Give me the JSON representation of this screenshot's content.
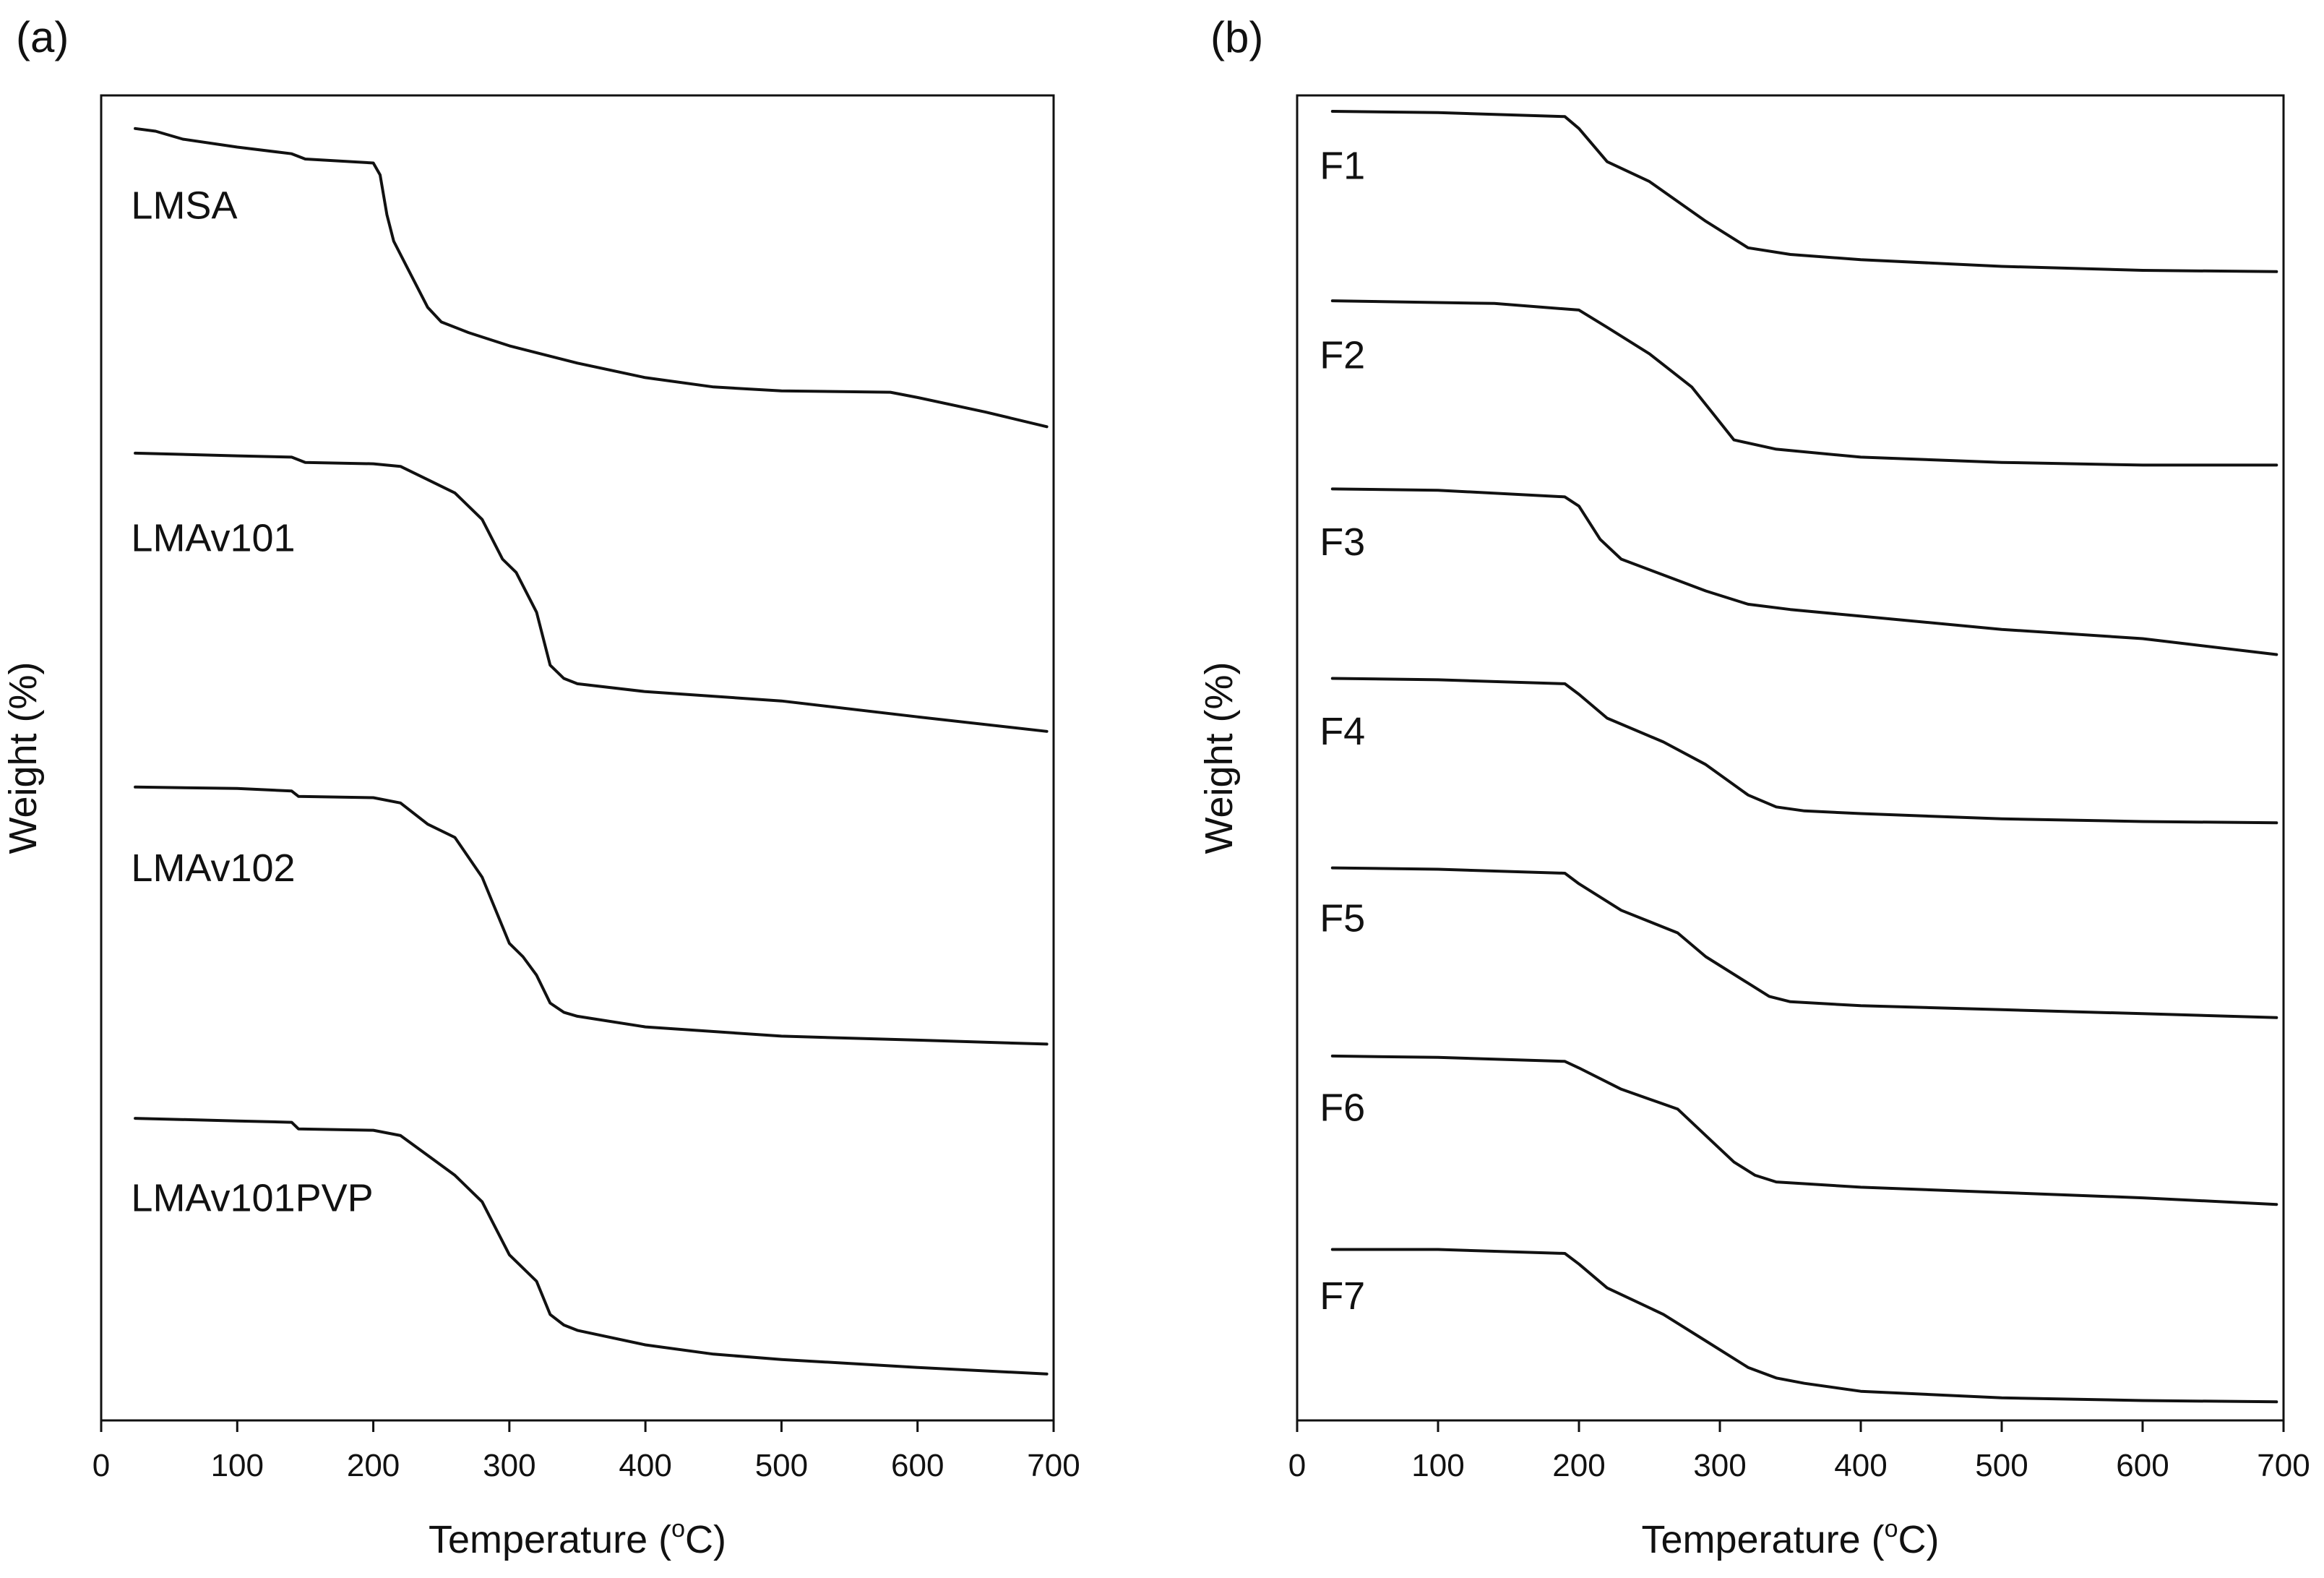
{
  "chart_data": [
    {
      "type": "line",
      "panel_label": "(a)",
      "xlabel": "Temperature (",
      "xlabel_sup": "o",
      "xlabel_end": "C)",
      "ylabel": "Weight (%)",
      "xlim": [
        0,
        700
      ],
      "xticks": [
        0,
        100,
        200,
        300,
        400,
        500,
        600,
        700
      ],
      "ylim": [
        0,
        1
      ],
      "yticks_shown": false,
      "grid": false,
      "note": "Curves are vertically offset (stacked); y values are normalized relative positions (1 = top of axis, 0 = bottom).",
      "series": [
        {
          "name": "LMSA",
          "x": [
            25,
            40,
            60,
            100,
            140,
            150,
            200,
            205,
            210,
            215,
            225,
            240,
            250,
            270,
            300,
            350,
            400,
            450,
            500,
            580,
            600,
            650,
            695
          ],
          "y": [
            0.975,
            0.973,
            0.967,
            0.961,
            0.956,
            0.952,
            0.949,
            0.94,
            0.91,
            0.89,
            0.87,
            0.84,
            0.829,
            0.821,
            0.811,
            0.798,
            0.787,
            0.78,
            0.777,
            0.776,
            0.772,
            0.761,
            0.75
          ]
        },
        {
          "name": "LMAv101",
          "x": [
            25,
            100,
            140,
            150,
            200,
            220,
            240,
            260,
            280,
            295,
            305,
            320,
            330,
            340,
            350,
            400,
            500,
            600,
            695
          ],
          "y": [
            0.73,
            0.728,
            0.727,
            0.723,
            0.722,
            0.72,
            0.71,
            0.7,
            0.68,
            0.65,
            0.64,
            0.61,
            0.57,
            0.56,
            0.556,
            0.55,
            0.543,
            0.531,
            0.52
          ]
        },
        {
          "name": "LMAv102",
          "x": [
            25,
            100,
            140,
            145,
            200,
            220,
            240,
            260,
            280,
            300,
            310,
            320,
            330,
            340,
            350,
            400,
            500,
            600,
            695
          ],
          "y": [
            0.478,
            0.477,
            0.475,
            0.471,
            0.47,
            0.466,
            0.45,
            0.44,
            0.41,
            0.36,
            0.35,
            0.336,
            0.315,
            0.308,
            0.305,
            0.297,
            0.29,
            0.287,
            0.284
          ]
        },
        {
          "name": "LMAv101PVP",
          "x": [
            25,
            100,
            140,
            145,
            200,
            220,
            240,
            260,
            280,
            300,
            320,
            330,
            340,
            350,
            400,
            450,
            500,
            600,
            695
          ],
          "y": [
            0.228,
            0.226,
            0.225,
            0.22,
            0.219,
            0.215,
            0.2,
            0.185,
            0.165,
            0.125,
            0.105,
            0.08,
            0.072,
            0.068,
            0.057,
            0.05,
            0.046,
            0.04,
            0.035
          ]
        }
      ],
      "series_label_anchor_x": 22,
      "series_label_anchor_y": [
        0.907,
        0.656,
        0.407,
        0.158
      ]
    },
    {
      "type": "line",
      "panel_label": "(b)",
      "xlabel": "Temperature (",
      "xlabel_sup": "o",
      "xlabel_end": "C)",
      "ylabel": "Weight (%)",
      "xlim": [
        0,
        700
      ],
      "xticks": [
        0,
        100,
        200,
        300,
        400,
        500,
        600,
        700
      ],
      "ylim": [
        0,
        1
      ],
      "yticks_shown": false,
      "grid": false,
      "note": "Curves are vertically offset (stacked); y values are normalized relative positions (1 = top of axis, 0 = bottom).",
      "series": [
        {
          "name": "F1",
          "x": [
            25,
            100,
            190,
            200,
            220,
            250,
            270,
            290,
            320,
            350,
            400,
            500,
            600,
            695
          ],
          "y": [
            0.988,
            0.987,
            0.984,
            0.975,
            0.95,
            0.935,
            0.92,
            0.905,
            0.885,
            0.88,
            0.876,
            0.871,
            0.868,
            0.867
          ]
        },
        {
          "name": "F2",
          "x": [
            25,
            140,
            200,
            220,
            250,
            280,
            295,
            310,
            340,
            400,
            500,
            600,
            695
          ],
          "y": [
            0.845,
            0.843,
            0.838,
            0.825,
            0.805,
            0.78,
            0.76,
            0.74,
            0.733,
            0.727,
            0.723,
            0.721,
            0.721
          ]
        },
        {
          "name": "F3",
          "x": [
            25,
            100,
            190,
            200,
            215,
            230,
            260,
            290,
            320,
            350,
            400,
            500,
            600,
            695
          ],
          "y": [
            0.703,
            0.702,
            0.697,
            0.69,
            0.665,
            0.65,
            0.638,
            0.626,
            0.616,
            0.612,
            0.607,
            0.597,
            0.59,
            0.578
          ]
        },
        {
          "name": "F4",
          "x": [
            25,
            100,
            190,
            200,
            220,
            260,
            290,
            320,
            340,
            360,
            400,
            500,
            600,
            695
          ],
          "y": [
            0.56,
            0.559,
            0.556,
            0.548,
            0.53,
            0.512,
            0.495,
            0.472,
            0.463,
            0.46,
            0.458,
            0.454,
            0.452,
            0.451
          ]
        },
        {
          "name": "F5",
          "x": [
            25,
            100,
            190,
            200,
            230,
            270,
            290,
            320,
            335,
            350,
            400,
            500,
            600,
            695
          ],
          "y": [
            0.417,
            0.416,
            0.413,
            0.405,
            0.385,
            0.368,
            0.35,
            0.33,
            0.32,
            0.316,
            0.313,
            0.31,
            0.307,
            0.304
          ]
        },
        {
          "name": "F6",
          "x": [
            25,
            100,
            190,
            200,
            230,
            270,
            290,
            310,
            325,
            340,
            400,
            500,
            600,
            695
          ],
          "y": [
            0.275,
            0.274,
            0.271,
            0.266,
            0.25,
            0.235,
            0.215,
            0.195,
            0.185,
            0.18,
            0.176,
            0.172,
            0.168,
            0.163
          ]
        },
        {
          "name": "F7",
          "x": [
            25,
            100,
            190,
            200,
            220,
            260,
            290,
            320,
            340,
            360,
            400,
            500,
            600,
            695
          ],
          "y": [
            0.129,
            0.129,
            0.126,
            0.118,
            0.1,
            0.08,
            0.06,
            0.04,
            0.032,
            0.028,
            0.022,
            0.017,
            0.015,
            0.014
          ]
        }
      ],
      "series_label_anchor_x": 16,
      "series_label_anchor_y": [
        0.937,
        0.794,
        0.653,
        0.51,
        0.369,
        0.226,
        0.084
      ]
    }
  ]
}
